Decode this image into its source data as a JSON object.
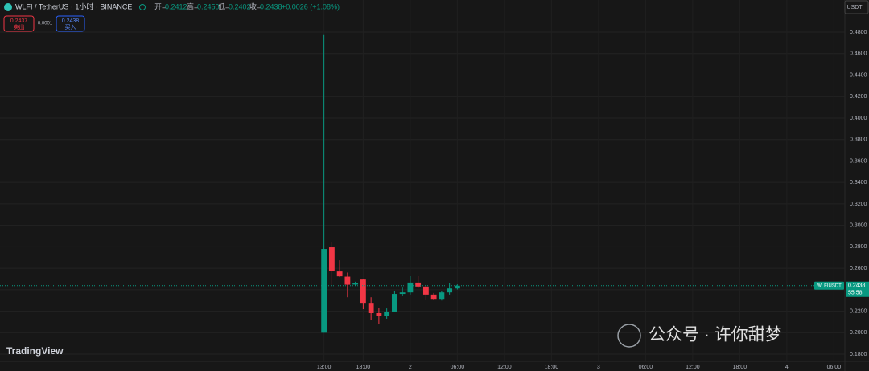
{
  "header": {
    "symbol": "WLFI / TetherUS · 1小时 · BINANCE",
    "open_label": "开=",
    "open": "0.2412",
    "high_label": "高=",
    "high": "0.2450",
    "low_label": "低=",
    "low": "0.2402",
    "close_label": "收=",
    "close": "0.2438",
    "change": "+0.0026 (+1.08%)"
  },
  "buttons": {
    "sell_price": "0.2437",
    "sell": "卖出",
    "spread": "0.0001",
    "buy_price": "0.2438",
    "buy": "买入"
  },
  "currency": "USDT",
  "price_tag": {
    "symbol": "WLFIUSDT",
    "price": "0.2438",
    "countdown": "55:58"
  },
  "logo": "TradingView",
  "watermark": "公众号 · 许你甜梦",
  "chart_data": {
    "type": "candlestick",
    "x": [
      13,
      14,
      15,
      16,
      17,
      18,
      19,
      20,
      21,
      22,
      23,
      24,
      25,
      26,
      27,
      28,
      29,
      30
    ],
    "open": [
      0.2,
      0.2795,
      0.257,
      0.2522,
      0.2448,
      0.2495,
      0.2278,
      0.2182,
      0.2152,
      0.2197,
      0.2361,
      0.2375,
      0.2467,
      0.243,
      0.2355,
      0.2315,
      0.2375,
      0.2412
    ],
    "high": [
      0.478,
      0.2847,
      0.2675,
      0.256,
      0.2475,
      0.2497,
      0.233,
      0.223,
      0.2226,
      0.2384,
      0.242,
      0.2526,
      0.2526,
      0.2445,
      0.237,
      0.239,
      0.246,
      0.245
    ],
    "low": [
      0.2,
      0.2444,
      0.2518,
      0.233,
      0.244,
      0.2219,
      0.2122,
      0.2077,
      0.213,
      0.219,
      0.234,
      0.2355,
      0.2415,
      0.2305,
      0.2305,
      0.23,
      0.2355,
      0.2402
    ],
    "close": [
      0.278,
      0.2578,
      0.2525,
      0.2447,
      0.2462,
      0.2278,
      0.2182,
      0.2152,
      0.2197,
      0.2361,
      0.2375,
      0.2467,
      0.243,
      0.2355,
      0.2315,
      0.2375,
      0.2412,
      0.2438
    ],
    "up_color": "#089981",
    "down_color": "#f23645",
    "last_price": 0.2438,
    "xlim": [
      -28.3,
      79.4
    ],
    "xticks": [
      {
        "value": 13,
        "label": "13:00"
      },
      {
        "value": 18,
        "label": "18:00"
      },
      {
        "value": 24,
        "label": "2"
      },
      {
        "value": 30,
        "label": "06:00"
      },
      {
        "value": 36,
        "label": "12:00"
      },
      {
        "value": 42,
        "label": "18:00"
      },
      {
        "value": 48,
        "label": "3"
      },
      {
        "value": 54,
        "label": "06:00"
      },
      {
        "value": 60,
        "label": "12:00"
      },
      {
        "value": 66,
        "label": "18:00"
      },
      {
        "value": 72,
        "label": "4"
      },
      {
        "value": 78,
        "label": "06:00"
      }
    ],
    "ylim": [
      0.1733,
      0.4965
    ],
    "yticks": [
      {
        "value": 0.18,
        "label": "0.1800"
      },
      {
        "value": 0.2,
        "label": "0.2000"
      },
      {
        "value": 0.22,
        "label": "0.2200"
      },
      {
        "value": 0.24,
        "label": "0.2400"
      },
      {
        "value": 0.26,
        "label": "0.2600"
      },
      {
        "value": 0.28,
        "label": "0.2800"
      },
      {
        "value": 0.3,
        "label": "0.3000"
      },
      {
        "value": 0.32,
        "label": "0.3200"
      },
      {
        "value": 0.34,
        "label": "0.3400"
      },
      {
        "value": 0.36,
        "label": "0.3600"
      },
      {
        "value": 0.38,
        "label": "0.3800"
      },
      {
        "value": 0.4,
        "label": "0.4000"
      },
      {
        "value": 0.42,
        "label": "0.4200"
      },
      {
        "value": 0.44,
        "label": "0.4400"
      },
      {
        "value": 0.46,
        "label": "0.4600"
      },
      {
        "value": 0.48,
        "label": "0.4800"
      }
    ],
    "grid": true
  }
}
